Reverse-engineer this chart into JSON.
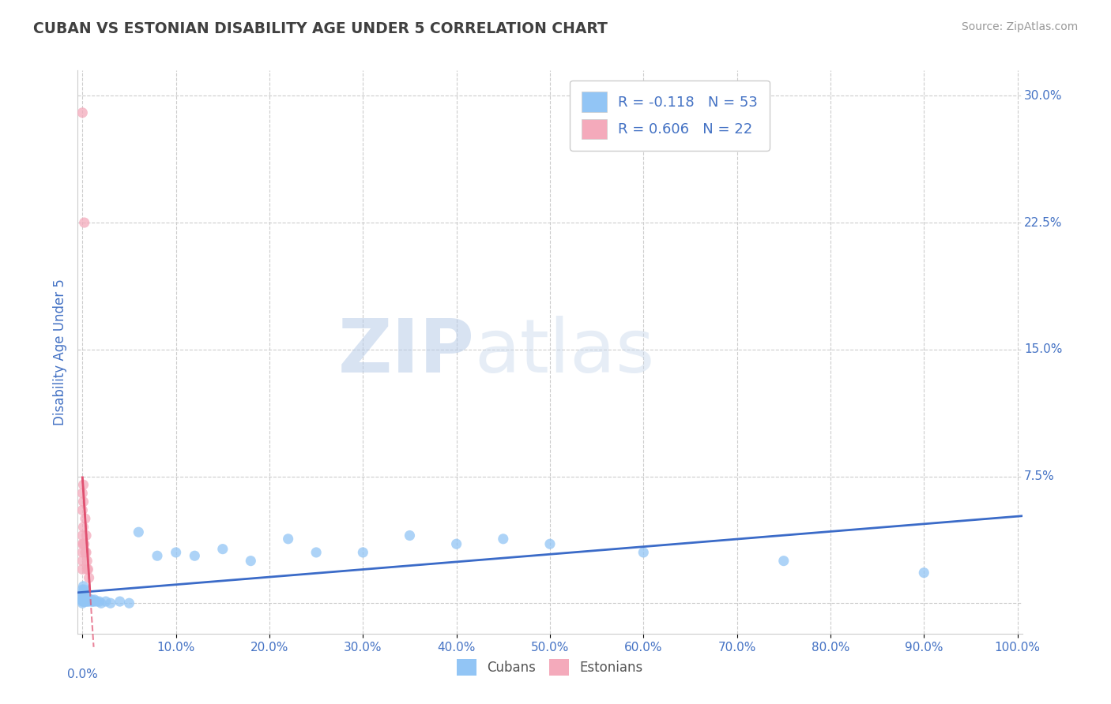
{
  "title": "CUBAN VS ESTONIAN DISABILITY AGE UNDER 5 CORRELATION CHART",
  "source": "Source: ZipAtlas.com",
  "ylabel": "Disability Age Under 5",
  "xlabel": "",
  "xlim": [
    -0.005,
    1.005
  ],
  "ylim": [
    -0.018,
    0.315
  ],
  "xticks": [
    0.0,
    0.1,
    0.2,
    0.3,
    0.4,
    0.5,
    0.6,
    0.7,
    0.8,
    0.9,
    1.0
  ],
  "xticklabels": [
    "0.0%",
    "10.0%",
    "20.0%",
    "30.0%",
    "40.0%",
    "50.0%",
    "60.0%",
    "70.0%",
    "80.0%",
    "90.0%",
    "100.0%"
  ],
  "yticks": [
    0.0,
    0.075,
    0.15,
    0.225,
    0.3
  ],
  "yticklabels": [
    "",
    "7.5%",
    "15.0%",
    "22.5%",
    "30.0%"
  ],
  "cuban_color": "#92C5F5",
  "estonian_color": "#F4AABB",
  "cuban_line_color": "#3B6BC8",
  "estonian_line_color": "#E05070",
  "R_cuban": -0.118,
  "N_cuban": 53,
  "R_estonian": 0.606,
  "N_estonian": 22,
  "legend_label_cuban": "Cubans",
  "legend_label_estonian": "Estonians",
  "watermark_zip": "ZIP",
  "watermark_atlas": "atlas",
  "background_color": "#FFFFFF",
  "grid_color": "#CCCCCC",
  "title_color": "#404040",
  "axis_label_color": "#4472C4",
  "tick_color": "#4472C4",
  "cuban_x": [
    0.0,
    0.0,
    0.0,
    0.0,
    0.0,
    0.0,
    0.001,
    0.001,
    0.001,
    0.001,
    0.001,
    0.002,
    0.002,
    0.002,
    0.003,
    0.003,
    0.003,
    0.004,
    0.004,
    0.005,
    0.005,
    0.006,
    0.006,
    0.007,
    0.008,
    0.009,
    0.01,
    0.011,
    0.012,
    0.013,
    0.015,
    0.018,
    0.02,
    0.025,
    0.03,
    0.04,
    0.05,
    0.06,
    0.08,
    0.1,
    0.12,
    0.15,
    0.18,
    0.22,
    0.25,
    0.3,
    0.35,
    0.4,
    0.45,
    0.5,
    0.6,
    0.75,
    0.9
  ],
  "cuban_y": [
    0.008,
    0.005,
    0.003,
    0.002,
    0.001,
    0.0,
    0.01,
    0.007,
    0.005,
    0.003,
    0.001,
    0.008,
    0.004,
    0.001,
    0.006,
    0.003,
    0.001,
    0.004,
    0.002,
    0.003,
    0.001,
    0.003,
    0.001,
    0.002,
    0.002,
    0.001,
    0.002,
    0.001,
    0.001,
    0.002,
    0.001,
    0.001,
    0.0,
    0.001,
    0.0,
    0.001,
    0.0,
    0.042,
    0.028,
    0.03,
    0.028,
    0.032,
    0.025,
    0.038,
    0.03,
    0.03,
    0.04,
    0.035,
    0.038,
    0.035,
    0.03,
    0.025,
    0.018
  ],
  "estonian_x": [
    0.0,
    0.0,
    0.0,
    0.0,
    0.0,
    0.0,
    0.0,
    0.0,
    0.001,
    0.001,
    0.001,
    0.001,
    0.002,
    0.002,
    0.003,
    0.003,
    0.004,
    0.004,
    0.005,
    0.005,
    0.006,
    0.007
  ],
  "estonian_y": [
    0.29,
    0.065,
    0.055,
    0.04,
    0.035,
    0.03,
    0.025,
    0.02,
    0.07,
    0.06,
    0.045,
    0.035,
    0.225,
    0.035,
    0.05,
    0.03,
    0.04,
    0.03,
    0.025,
    0.02,
    0.02,
    0.015
  ]
}
